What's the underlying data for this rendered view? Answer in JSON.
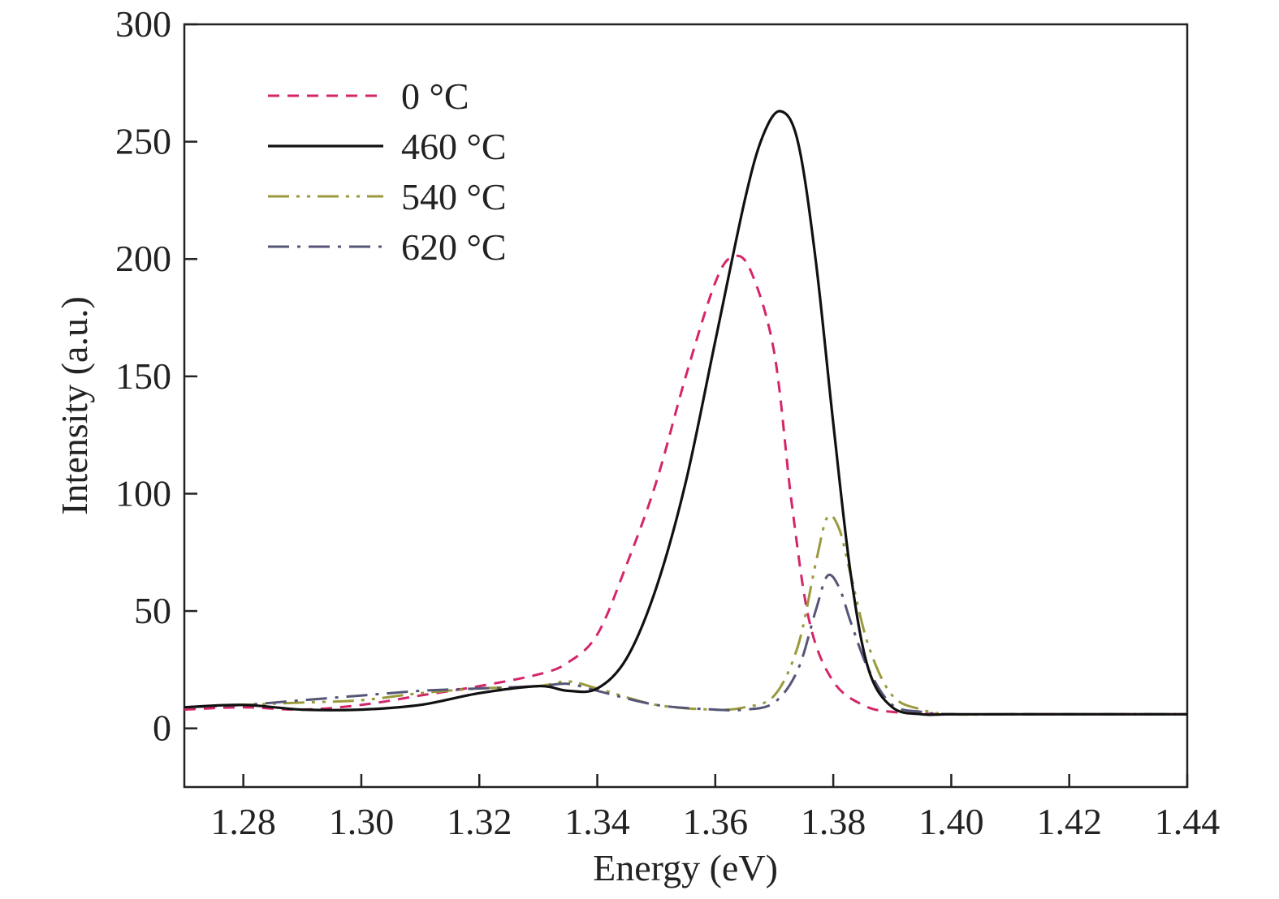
{
  "chart_data": {
    "type": "line",
    "title": "",
    "xlabel": "Energy (eV)",
    "ylabel": "Intensity (a.u.)",
    "xlim": [
      1.27,
      1.44
    ],
    "ylim": [
      -25,
      300
    ],
    "xticks": [
      "1.28",
      "1.30",
      "1.32",
      "1.34",
      "1.36",
      "1.38",
      "1.40",
      "1.42",
      "1.44"
    ],
    "yticks": [
      "0",
      "50",
      "100",
      "150",
      "200",
      "250",
      "300"
    ],
    "grid": false,
    "legend_position": "top-left",
    "series": [
      {
        "name": "0 °C",
        "style": "dashed",
        "color": "#d4256a",
        "x": [
          1.27,
          1.28,
          1.29,
          1.3,
          1.31,
          1.32,
          1.33,
          1.335,
          1.34,
          1.345,
          1.35,
          1.355,
          1.36,
          1.363,
          1.366,
          1.37,
          1.373,
          1.376,
          1.38,
          1.385,
          1.39,
          1.4,
          1.41,
          1.42,
          1.43,
          1.44
        ],
        "y": [
          8,
          9,
          8,
          10,
          14,
          18,
          23,
          28,
          40,
          70,
          105,
          150,
          190,
          201,
          195,
          160,
          95,
          45,
          20,
          10,
          7,
          6,
          6,
          6,
          6,
          6
        ]
      },
      {
        "name": "460 °C",
        "style": "solid",
        "color": "#111111",
        "x": [
          1.27,
          1.28,
          1.29,
          1.3,
          1.31,
          1.32,
          1.33,
          1.335,
          1.34,
          1.345,
          1.35,
          1.355,
          1.36,
          1.365,
          1.368,
          1.371,
          1.374,
          1.377,
          1.38,
          1.383,
          1.386,
          1.39,
          1.395,
          1.4,
          1.41,
          1.42,
          1.43,
          1.44
        ],
        "y": [
          9,
          10,
          8,
          8,
          10,
          15,
          18,
          16,
          17,
          30,
          60,
          105,
          165,
          225,
          252,
          263,
          250,
          200,
          130,
          65,
          25,
          9,
          6,
          6,
          6,
          6,
          6,
          6
        ]
      },
      {
        "name": "540 °C",
        "style": "dash-dot-dot",
        "color": "#9a9a3c",
        "x": [
          1.27,
          1.28,
          1.29,
          1.3,
          1.31,
          1.32,
          1.33,
          1.335,
          1.34,
          1.35,
          1.36,
          1.365,
          1.37,
          1.374,
          1.377,
          1.379,
          1.381,
          1.383,
          1.386,
          1.39,
          1.395,
          1.4,
          1.41,
          1.42,
          1.43,
          1.44
        ],
        "y": [
          9,
          10,
          11,
          12,
          15,
          17,
          18,
          20,
          17,
          10,
          8,
          9,
          14,
          35,
          70,
          90,
          85,
          65,
          35,
          14,
          8,
          6,
          6,
          6,
          6,
          6
        ]
      },
      {
        "name": "620 °C",
        "style": "dash-dot",
        "color": "#555577",
        "x": [
          1.27,
          1.28,
          1.29,
          1.3,
          1.31,
          1.32,
          1.33,
          1.335,
          1.34,
          1.35,
          1.36,
          1.365,
          1.37,
          1.374,
          1.377,
          1.379,
          1.381,
          1.383,
          1.386,
          1.39,
          1.395,
          1.4,
          1.41,
          1.42,
          1.43,
          1.44
        ],
        "y": [
          9,
          10,
          12,
          14,
          16,
          17,
          18,
          19,
          16,
          10,
          8,
          8,
          11,
          25,
          50,
          65,
          60,
          45,
          25,
          10,
          7,
          6,
          6,
          6,
          6,
          6
        ]
      }
    ]
  }
}
